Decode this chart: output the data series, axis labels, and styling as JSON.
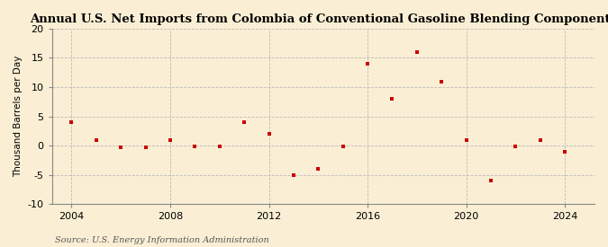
{
  "title": "Annual U.S. Net Imports from Colombia of Conventional Gasoline Blending Components",
  "ylabel": "Thousand Barrels per Day",
  "source": "Source: U.S. Energy Information Administration",
  "background_color": "#faefd4",
  "plot_bg_color": "#faefd4",
  "marker_color": "#cc0000",
  "years": [
    2004,
    2005,
    2006,
    2007,
    2008,
    2009,
    2010,
    2011,
    2012,
    2013,
    2014,
    2015,
    2016,
    2017,
    2018,
    2019,
    2020,
    2021,
    2022,
    2023,
    2024
  ],
  "values": [
    4.0,
    1.0,
    -0.3,
    -0.3,
    1.0,
    -0.2,
    -0.2,
    4.0,
    2.0,
    -5.0,
    -4.0,
    -0.2,
    14.0,
    8.0,
    16.0,
    11.0,
    1.0,
    -6.0,
    -0.2,
    1.0,
    -1.0
  ],
  "ylim": [
    -10,
    20
  ],
  "yticks": [
    -10,
    -5,
    0,
    5,
    10,
    15,
    20
  ],
  "xlim": [
    2003.2,
    2025.2
  ],
  "xticks": [
    2004,
    2008,
    2012,
    2016,
    2020,
    2024
  ],
  "grid_color": "#bbbbbb",
  "title_fontsize": 9.5,
  "label_fontsize": 7.5,
  "tick_fontsize": 8,
  "source_fontsize": 7
}
